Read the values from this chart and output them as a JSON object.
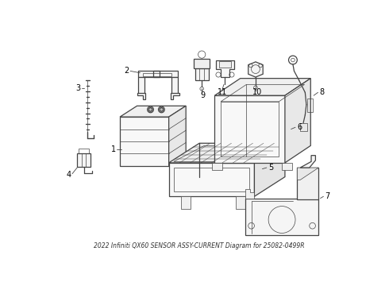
{
  "title": "2022 Infiniti QX60 SENSOR ASSY-CURRENT Diagram for 25082-0499R",
  "bg": "#ffffff",
  "lc": "#444444",
  "fig_w": 4.9,
  "fig_h": 3.6,
  "dpi": 100
}
